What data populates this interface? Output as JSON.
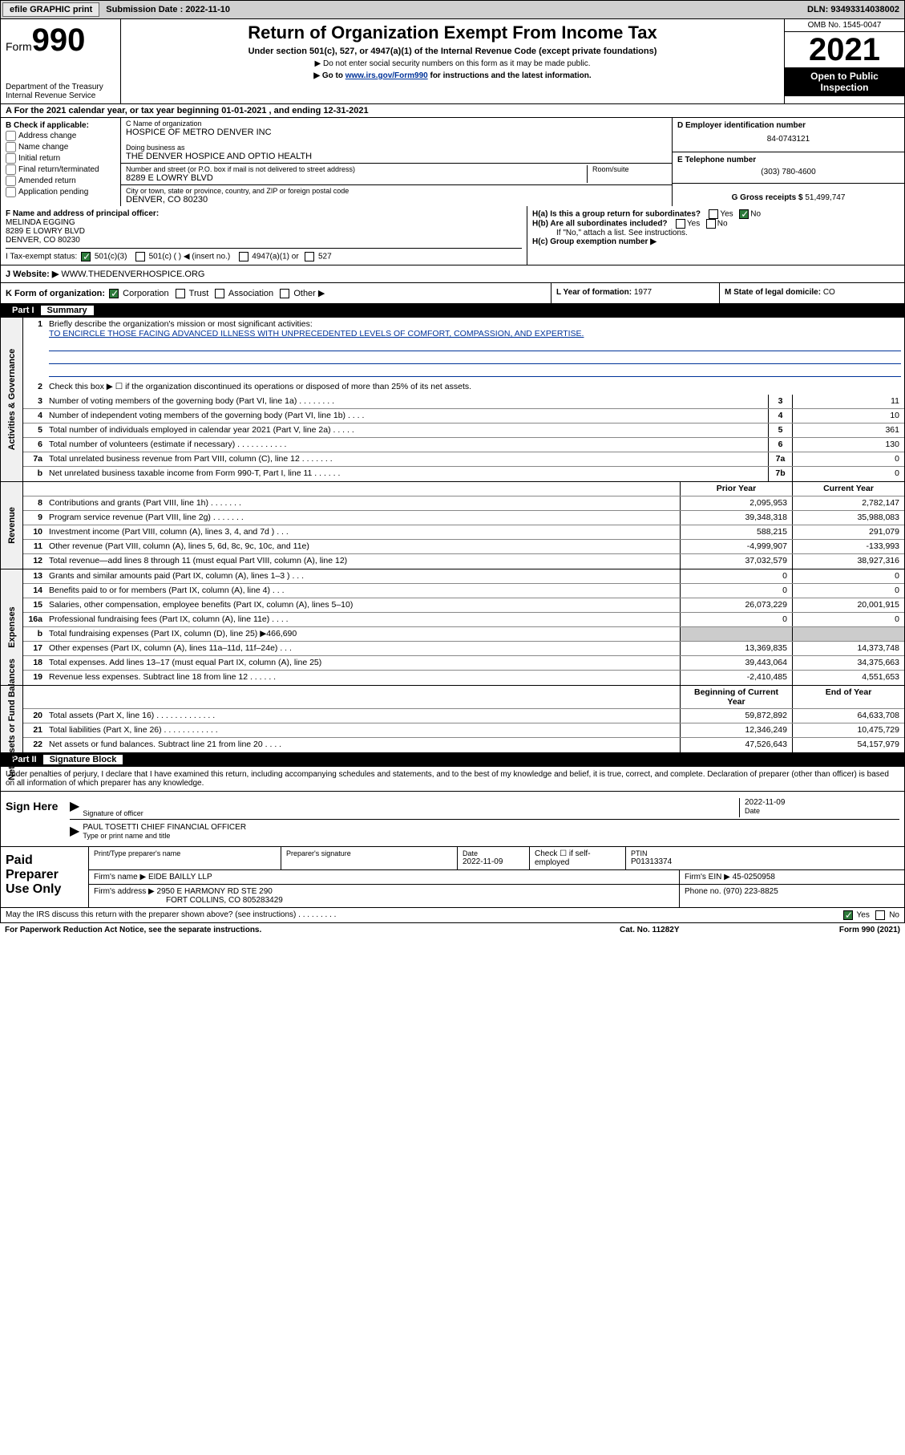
{
  "topbar": {
    "efile_label": "efile GRAPHIC print",
    "sub_label": "Submission Date : 2022-11-10",
    "dln": "DLN: 93493314038002"
  },
  "header": {
    "form_word": "Form",
    "form_num": "990",
    "dept": "Department of the Treasury",
    "irs": "Internal Revenue Service",
    "title": "Return of Organization Exempt From Income Tax",
    "sub": "Under section 501(c), 527, or 4947(a)(1) of the Internal Revenue Code (except private foundations)",
    "arrow1": "▶ Do not enter social security numbers on this form as it may be made public.",
    "arrow2_pre": "▶ Go to ",
    "arrow2_link": "www.irs.gov/Form990",
    "arrow2_post": " for instructions and the latest information.",
    "omb": "OMB No. 1545-0047",
    "year": "2021",
    "open": "Open to Public Inspection"
  },
  "row_a": "A For the 2021 calendar year, or tax year beginning 01-01-2021   , and ending 12-31-2021",
  "section_b": {
    "title": "B Check if applicable:",
    "opts": [
      "Address change",
      "Name change",
      "Initial return",
      "Final return/terminated",
      "Amended return",
      "Application pending"
    ],
    "c_label": "C Name of organization",
    "c_val": "HOSPICE OF METRO DENVER INC",
    "dba_label": "Doing business as",
    "dba_val": "THE DENVER HOSPICE AND OPTIO HEALTH",
    "street_label": "Number and street (or P.O. box if mail is not delivered to street address)",
    "room_label": "Room/suite",
    "street_val": "8289 E LOWRY BLVD",
    "city_label": "City or town, state or province, country, and ZIP or foreign postal code",
    "city_val": "DENVER, CO  80230",
    "d_label": "D Employer identification number",
    "d_val": "84-0743121",
    "e_label": "E Telephone number",
    "e_val": "(303) 780-4600",
    "g_label": "G Gross receipts $",
    "g_val": "51,499,747"
  },
  "row_f": {
    "f_label": "F Name and address of principal officer:",
    "f_name": "MELINDA EGGING",
    "f_addr1": "8289 E LOWRY BLVD",
    "f_addr2": "DENVER, CO  80230",
    "ha": "H(a)  Is this a group return for subordinates?",
    "hb": "H(b)  Are all subordinates included?",
    "hb_note": "If \"No,\" attach a list. See instructions.",
    "hc": "H(c)  Group exemption number ▶",
    "yes": "Yes",
    "no": "No"
  },
  "row_i": {
    "label": "I   Tax-exempt status:",
    "c3": "501(c)(3)",
    "c": "501(c) (   ) ◀ (insert no.)",
    "a1": "4947(a)(1) or",
    "s527": "527"
  },
  "row_j": {
    "label": "J   Website: ▶",
    "val": "WWW.THEDENVERHOSPICE.ORG"
  },
  "row_k": {
    "label": "K Form of organization:",
    "corp": "Corporation",
    "trust": "Trust",
    "assoc": "Association",
    "other": "Other ▶",
    "l_label": "L Year of formation:",
    "l_val": "1977",
    "m_label": "M State of legal domicile:",
    "m_val": "CO"
  },
  "part1": {
    "hdr": "Part I",
    "title": "Summary",
    "l1a": "Briefly describe the organization's mission or most significant activities:",
    "l1b": "TO ENCIRCLE THOSE FACING ADVANCED ILLNESS WITH UNPRECEDENTED LEVELS OF COMFORT, COMPASSION, AND EXPERTISE.",
    "l2": "Check this box ▶ ☐  if the organization discontinued its operations or disposed of more than 25% of its net assets.",
    "lines_gov": [
      {
        "n": "3",
        "d": "Number of voting members of the governing body (Part VI, line 1a)  .   .   .   .   .   .   .   .",
        "box": "3",
        "v": "11"
      },
      {
        "n": "4",
        "d": "Number of independent voting members of the governing body (Part VI, line 1b)  .   .   .   .",
        "box": "4",
        "v": "10"
      },
      {
        "n": "5",
        "d": "Total number of individuals employed in calendar year 2021 (Part V, line 2a)  .   .   .   .   .",
        "box": "5",
        "v": "361"
      },
      {
        "n": "6",
        "d": "Total number of volunteers (estimate if necessary)  .   .   .   .   .   .   .   .   .   .   .",
        "box": "6",
        "v": "130"
      },
      {
        "n": "7a",
        "d": "Total unrelated business revenue from Part VIII, column (C), line 12  .   .   .   .   .   .   .",
        "box": "7a",
        "v": "0"
      },
      {
        "n": "  b",
        "d": "Net unrelated business taxable income from Form 990-T, Part I, line 11  .   .   .   .   .   .",
        "box": "7b",
        "v": "0"
      }
    ],
    "col_prior": "Prior Year",
    "col_curr": "Current Year",
    "lines_rev": [
      {
        "n": "8",
        "d": "Contributions and grants (Part VIII, line 1h)  .   .   .   .   .   .   .",
        "p": "2,095,953",
        "c": "2,782,147"
      },
      {
        "n": "9",
        "d": "Program service revenue (Part VIII, line 2g)  .   .   .   .   .   .   .",
        "p": "39,348,318",
        "c": "35,988,083"
      },
      {
        "n": "10",
        "d": "Investment income (Part VIII, column (A), lines 3, 4, and 7d )  .   .   .",
        "p": "588,215",
        "c": "291,079"
      },
      {
        "n": "11",
        "d": "Other revenue (Part VIII, column (A), lines 5, 6d, 8c, 9c, 10c, and 11e)",
        "p": "-4,999,907",
        "c": "-133,993"
      },
      {
        "n": "12",
        "d": "Total revenue—add lines 8 through 11 (must equal Part VIII, column (A), line 12)",
        "p": "37,032,579",
        "c": "38,927,316"
      }
    ],
    "lines_exp": [
      {
        "n": "13",
        "d": "Grants and similar amounts paid (Part IX, column (A), lines 1–3 )  .   .   .",
        "p": "0",
        "c": "0"
      },
      {
        "n": "14",
        "d": "Benefits paid to or for members (Part IX, column (A), line 4)  .   .   .",
        "p": "0",
        "c": "0"
      },
      {
        "n": "15",
        "d": "Salaries, other compensation, employee benefits (Part IX, column (A), lines 5–10)",
        "p": "26,073,229",
        "c": "20,001,915"
      },
      {
        "n": "16a",
        "d": "Professional fundraising fees (Part IX, column (A), line 11e)  .   .   .   .",
        "p": "0",
        "c": "0"
      },
      {
        "n": "  b",
        "d": "Total fundraising expenses (Part IX, column (D), line 25) ▶466,690",
        "p": "shade",
        "c": "shade"
      },
      {
        "n": "17",
        "d": "Other expenses (Part IX, column (A), lines 11a–11d, 11f–24e)  .   .   .",
        "p": "13,369,835",
        "c": "14,373,748"
      },
      {
        "n": "18",
        "d": "Total expenses. Add lines 13–17 (must equal Part IX, column (A), line 25)",
        "p": "39,443,064",
        "c": "34,375,663"
      },
      {
        "n": "19",
        "d": "Revenue less expenses. Subtract line 18 from line 12  .   .   .   .   .   .",
        "p": "-2,410,485",
        "c": "4,551,653"
      }
    ],
    "col_beg": "Beginning of Current Year",
    "col_end": "End of Year",
    "lines_net": [
      {
        "n": "20",
        "d": "Total assets (Part X, line 16)  .   .   .   .   .   .   .   .   .   .   .   .   .",
        "p": "59,872,892",
        "c": "64,633,708"
      },
      {
        "n": "21",
        "d": "Total liabilities (Part X, line 26)  .   .   .   .   .   .   .   .   .   .   .   .",
        "p": "12,346,249",
        "c": "10,475,729"
      },
      {
        "n": "22",
        "d": "Net assets or fund balances. Subtract line 21 from line 20  .   .   .   .",
        "p": "47,526,643",
        "c": "54,157,979"
      }
    ],
    "rot_gov": "Activities & Governance",
    "rot_rev": "Revenue",
    "rot_exp": "Expenses",
    "rot_net": "Net Assets or Fund Balances"
  },
  "part2": {
    "hdr": "Part II",
    "title": "Signature Block",
    "intro": "Under penalties of perjury, I declare that I have examined this return, including accompanying schedules and statements, and to the best of my knowledge and belief, it is true, correct, and complete. Declaration of preparer (other than officer) is based on all information of which preparer has any knowledge.",
    "sign_here": "Sign Here",
    "sig_officer": "Signature of officer",
    "sig_date_label": "Date",
    "sig_date": "2022-11-09",
    "sig_name": "PAUL TOSETTI  CHIEF FINANCIAL OFFICER",
    "sig_name_label": "Type or print name and title",
    "paid": "Paid Preparer Use Only",
    "p_name_label": "Print/Type preparer's name",
    "p_sig_label": "Preparer's signature",
    "p_date_label": "Date",
    "p_date": "2022-11-09",
    "p_check": "Check ☐ if self-employed",
    "ptin_label": "PTIN",
    "ptin": "P01313374",
    "firm_name_label": "Firm's name    ▶",
    "firm_name": "EIDE BAILLY LLP",
    "firm_ein_label": "Firm's EIN ▶",
    "firm_ein": "45-0250958",
    "firm_addr_label": "Firm's address ▶",
    "firm_addr1": "2950 E HARMONY RD STE 290",
    "firm_addr2": "FORT COLLINS, CO  805283429",
    "phone_label": "Phone no.",
    "phone": "(970) 223-8825",
    "may_irs": "May the IRS discuss this return with the preparer shown above? (see instructions)  .   .   .   .   .   .   .   .   .",
    "yes": "Yes",
    "no": "No"
  },
  "footer": {
    "pra": "For Paperwork Reduction Act Notice, see the separate instructions.",
    "cat": "Cat. No. 11282Y",
    "form": "Form 990 (2021)"
  }
}
